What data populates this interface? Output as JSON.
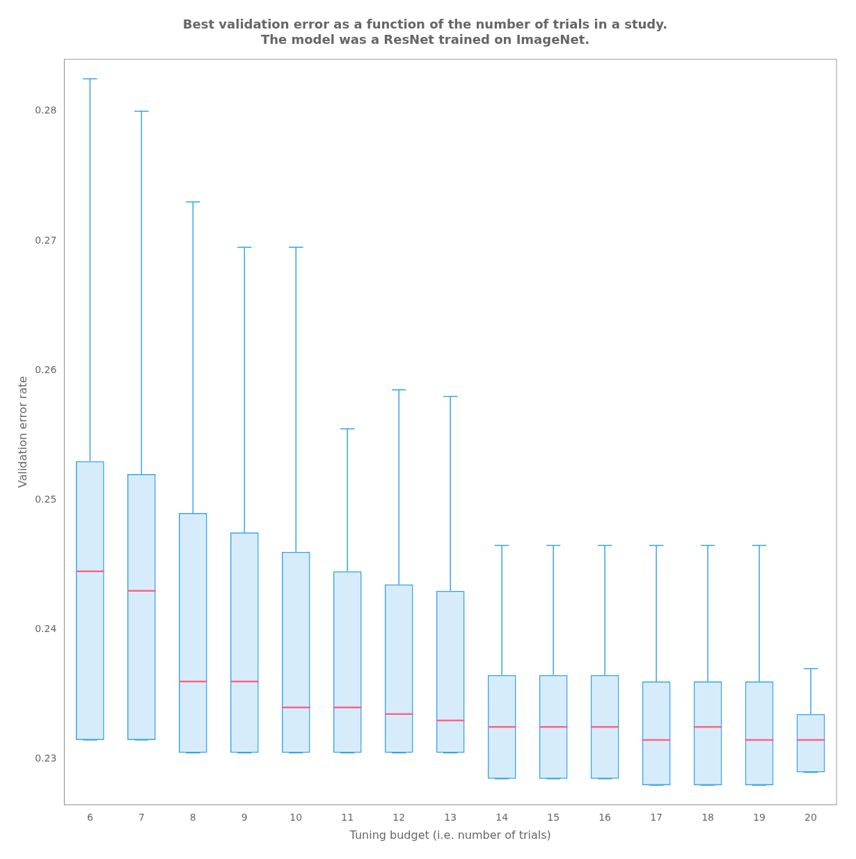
{
  "chart_data": {
    "type": "box",
    "title": "Best validation error as a function of the number of trials in a study.\nThe model was a ResNet trained on ImageNet.",
    "x_label": "Tuning budget (i.e. number of trials)",
    "y_label": "Validation error rate",
    "categories": [
      "6",
      "7",
      "8",
      "9",
      "10",
      "11",
      "12",
      "13",
      "14",
      "15",
      "16",
      "17",
      "18",
      "19",
      "20"
    ],
    "values": [
      {
        "low": 0.2315,
        "q1": 0.2315,
        "median": 0.2445,
        "q3": 0.253,
        "high": 0.2825
      },
      {
        "low": 0.2315,
        "q1": 0.2315,
        "median": 0.243,
        "q3": 0.252,
        "high": 0.28
      },
      {
        "low": 0.2305,
        "q1": 0.2305,
        "median": 0.236,
        "q3": 0.249,
        "high": 0.273
      },
      {
        "low": 0.2305,
        "q1": 0.2305,
        "median": 0.236,
        "q3": 0.2475,
        "high": 0.2695
      },
      {
        "low": 0.2305,
        "q1": 0.2305,
        "median": 0.234,
        "q3": 0.246,
        "high": 0.2695
      },
      {
        "low": 0.2305,
        "q1": 0.2305,
        "median": 0.234,
        "q3": 0.2445,
        "high": 0.2555
      },
      {
        "low": 0.2305,
        "q1": 0.2305,
        "median": 0.2335,
        "q3": 0.2435,
        "high": 0.2585
      },
      {
        "low": 0.2305,
        "q1": 0.2305,
        "median": 0.233,
        "q3": 0.243,
        "high": 0.258
      },
      {
        "low": 0.2285,
        "q1": 0.2285,
        "median": 0.2325,
        "q3": 0.2365,
        "high": 0.2465
      },
      {
        "low": 0.2285,
        "q1": 0.2285,
        "median": 0.2325,
        "q3": 0.2365,
        "high": 0.2465
      },
      {
        "low": 0.2285,
        "q1": 0.2285,
        "median": 0.2325,
        "q3": 0.2365,
        "high": 0.2465
      },
      {
        "low": 0.228,
        "q1": 0.228,
        "median": 0.2315,
        "q3": 0.236,
        "high": 0.2465
      },
      {
        "low": 0.228,
        "q1": 0.228,
        "median": 0.2325,
        "q3": 0.236,
        "high": 0.2465
      },
      {
        "low": 0.228,
        "q1": 0.228,
        "median": 0.2315,
        "q3": 0.236,
        "high": 0.2465
      },
      {
        "low": 0.229,
        "q1": 0.229,
        "median": 0.2315,
        "q3": 0.2335,
        "high": 0.237
      }
    ],
    "ylim": [
      0.2265,
      0.284
    ],
    "yticks": [
      0.23,
      0.24,
      0.25,
      0.26,
      0.27,
      0.28
    ],
    "grid": false
  }
}
